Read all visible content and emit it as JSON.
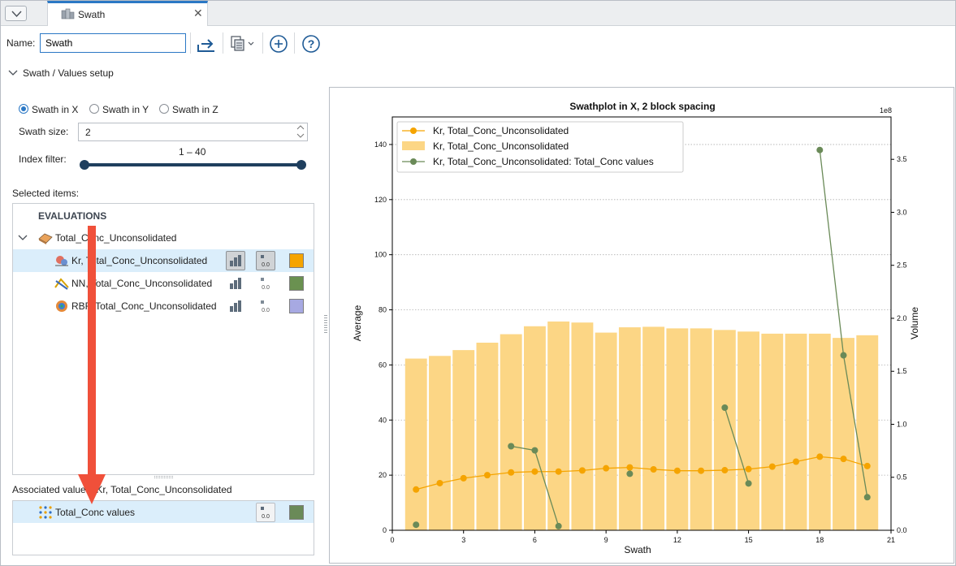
{
  "tab": {
    "title": "Swath",
    "close_glyph": "✕"
  },
  "toolbar": {
    "name_label": "Name:",
    "name_value": "Swath",
    "icons": [
      "export-arrow-icon",
      "copy-icon",
      "add-circle-icon",
      "help-icon"
    ]
  },
  "setup": {
    "section_title": "Swath / Values setup",
    "radios": [
      {
        "label": "Swath in X",
        "checked": true
      },
      {
        "label": "Swath in Y",
        "checked": false
      },
      {
        "label": "Swath in Z",
        "checked": false
      }
    ],
    "swath_size_label": "Swath size:",
    "swath_size_value": "2",
    "index_filter_label": "Index filter:",
    "index_filter_range": "1 – 40"
  },
  "selected": {
    "label": "Selected items:",
    "group_header": "EVALUATIONS",
    "parent": "Total_Conc_Unconsolidated",
    "items": [
      {
        "label": "Kr, Total_Conc_Unconsolidated",
        "color": "#f5a400"
      },
      {
        "label": "NN, Total_Conc_Unconsolidated",
        "color": "#6a9150"
      },
      {
        "label": "RBF, Total_Conc_Unconsolidated",
        "color": "#a7a9e2"
      }
    ]
  },
  "associated": {
    "label": "Associated values: Kr, Total_Conc_Unconsolidated",
    "items": [
      {
        "label": "Total_Conc values",
        "color": "#6a8a58"
      }
    ]
  },
  "chart_data": {
    "type": "bar",
    "title": "Swathplot in X, 2 block spacing",
    "xlabel": "Swath",
    "ylabel": "Average",
    "y2label": "Volume",
    "y2_exponent_label": "1e8",
    "xlim": [
      0,
      21
    ],
    "ylim": [
      0,
      150
    ],
    "y2lim": [
      0,
      3.9
    ],
    "xticks": [
      0,
      3,
      6,
      9,
      12,
      15,
      18,
      21
    ],
    "yticks": [
      0,
      20,
      40,
      60,
      80,
      100,
      120,
      140
    ],
    "y2ticks": [
      "0.0",
      "0.5",
      "1.0",
      "1.5",
      "2.0",
      "2.5",
      "3.0",
      "3.5"
    ],
    "y2tick_values": [
      0,
      0.5,
      1.0,
      1.5,
      2.0,
      2.5,
      3.0,
      3.5
    ],
    "grid": "horizontal dotted",
    "legend_position": "top-left",
    "series": [
      {
        "name": "Kr, Total_Conc_Unconsolidated",
        "kind": "line",
        "color": "#f5a400",
        "axis": "left",
        "x": [
          1,
          2,
          3,
          4,
          5,
          6,
          7,
          8,
          9,
          10,
          11,
          12,
          13,
          14,
          15,
          16,
          17,
          18,
          19,
          20
        ],
        "values": [
          14.8,
          17.1,
          18.9,
          20.0,
          21.0,
          21.3,
          21.3,
          21.7,
          22.5,
          22.8,
          22.1,
          21.6,
          21.6,
          21.8,
          22.2,
          23.1,
          24.9,
          26.7,
          25.9,
          23.3
        ]
      },
      {
        "name": "Kr, Total_Conc_Unconsolidated",
        "kind": "bar",
        "color": "#fcd685",
        "axis": "right",
        "x": [
          1,
          2,
          3,
          4,
          5,
          6,
          7,
          8,
          9,
          10,
          11,
          12,
          13,
          14,
          15,
          16,
          17,
          18,
          19,
          20
        ],
        "values": [
          1.62,
          1.645,
          1.7,
          1.77,
          1.85,
          1.925,
          1.97,
          1.96,
          1.865,
          1.915,
          1.92,
          1.905,
          1.905,
          1.89,
          1.875,
          1.855,
          1.855,
          1.855,
          1.815,
          1.84
        ]
      },
      {
        "name": "Kr, Total_Conc_Unconsolidated: Total_Conc values",
        "kind": "line",
        "color": "#6a8a58",
        "axis": "left",
        "segments": [
          {
            "x": [
              1
            ],
            "values": [
              2.0
            ]
          },
          {
            "x": [
              5,
              6,
              7
            ],
            "values": [
              30.5,
              29.0,
              1.5
            ]
          },
          {
            "x": [
              10
            ],
            "values": [
              20.5
            ]
          },
          {
            "x": [
              14,
              15
            ],
            "values": [
              44.5,
              17.0
            ]
          },
          {
            "x": [
              18,
              19,
              20
            ],
            "values": [
              138.0,
              63.5,
              12.0
            ]
          }
        ]
      }
    ]
  }
}
